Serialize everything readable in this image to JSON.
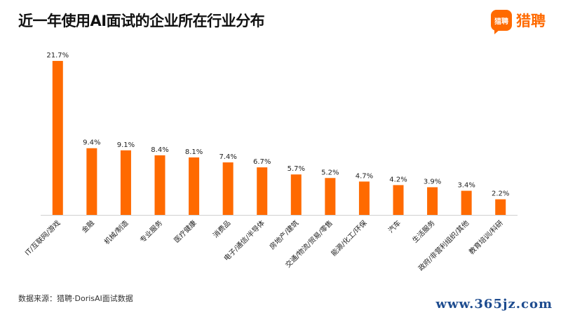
{
  "title": "近一年使用AI面试的企业所在行业分布",
  "logo": {
    "icon_text": "猎聘",
    "text": "猎聘",
    "icon": "speech-bubble-logo-icon"
  },
  "source": "数据来源：猎聘·DorisAI面试数据",
  "watermark": "www.365jz.com",
  "colors": {
    "bar": "#ff6a00",
    "brand": "#ff6a00"
  },
  "chart_data": {
    "type": "bar",
    "title": "",
    "xlabel": "",
    "ylabel": "",
    "ylim": [
      0,
      22
    ],
    "grid": false,
    "legend": "none",
    "categories": [
      "IT/互联网/游戏",
      "金融",
      "机械/制造",
      "专业服务",
      "医疗健康",
      "消费品",
      "电子/通信/半导体",
      "房地产/建筑",
      "交通/物流/贸易/零售",
      "能源/化工/环保",
      "汽车",
      "生活服务",
      "政府/非营利组织/其他",
      "教育培训/科研"
    ],
    "values": [
      21.7,
      9.4,
      9.1,
      8.4,
      8.1,
      7.4,
      6.7,
      5.7,
      5.2,
      4.7,
      4.2,
      3.9,
      3.4,
      2.2
    ],
    "value_labels": [
      "21.7%",
      "9.4%",
      "9.1%",
      "8.4%",
      "8.1%",
      "7.4%",
      "6.7%",
      "5.7%",
      "5.2%",
      "4.7%",
      "4.2%",
      "3.9%",
      "3.4%",
      "2.2%"
    ]
  }
}
